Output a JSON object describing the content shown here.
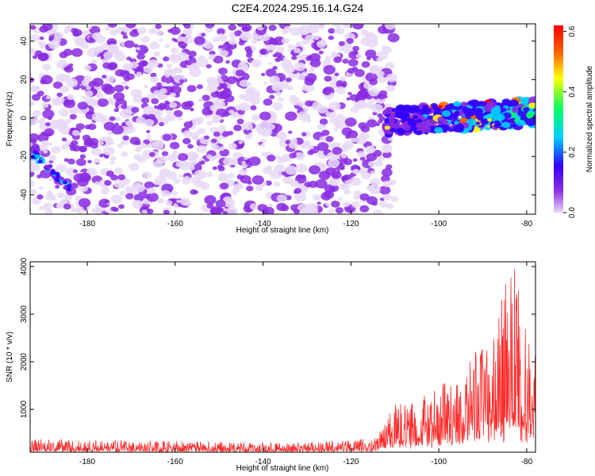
{
  "title": "C2E4.2024.295.16.14.G24",
  "chart_data": [
    {
      "type": "heatmap",
      "xlabel": "Height of straight line (km)",
      "ylabel": "Frequency (Hz)",
      "xlim": [
        -193,
        -78
      ],
      "ylim": [
        -50,
        49
      ],
      "x_ticks": [
        -180,
        -160,
        -140,
        -120,
        -100,
        -80
      ],
      "y_ticks": [
        -40,
        -20,
        0,
        20,
        40
      ],
      "colorbar": {
        "label": "Normalized spectral amplitude",
        "range": [
          0,
          0.62
        ],
        "ticks": [
          0,
          0.2,
          0.4,
          0.6
        ],
        "colors": [
          "#e8d9f7",
          "#8a2be2",
          "#3300ff",
          "#00ccff",
          "#00ff66",
          "#ffff00",
          "#ff6600",
          "#ff0000"
        ]
      },
      "regions": [
        {
          "x": [
            -193,
            -114
          ],
          "y": [
            -50,
            49
          ],
          "level": 0.08,
          "desc": "widespread noise"
        },
        {
          "x": [
            -112,
            -78
          ],
          "y": [
            -8,
            7
          ],
          "level": 0.3,
          "desc": "signal band"
        },
        {
          "x": [
            -193,
            -184
          ],
          "y": [
            -37,
            -17
          ],
          "level": 0.25,
          "desc": "edge streak"
        }
      ]
    },
    {
      "type": "line",
      "xlabel": "Height of straight line (km)",
      "ylabel": "SNR (10 * v/v)",
      "xlim": [
        -193,
        -78
      ],
      "ylim": [
        100,
        4100
      ],
      "x_ticks": [
        -180,
        -160,
        -140,
        -120,
        -100,
        -80
      ],
      "y_ticks": [
        1000,
        2000,
        3000,
        4000
      ],
      "series": [
        {
          "color": "#ff2a2a",
          "envelope": [
            {
              "x": -193,
              "min": 120,
              "max": 420
            },
            {
              "x": -160,
              "min": 110,
              "max": 360
            },
            {
              "x": -130,
              "min": 110,
              "max": 330
            },
            {
              "x": -114,
              "min": 120,
              "max": 430
            },
            {
              "x": -110,
              "min": 150,
              "max": 1100
            },
            {
              "x": -105,
              "min": 170,
              "max": 1150
            },
            {
              "x": -100,
              "min": 180,
              "max": 1550
            },
            {
              "x": -95,
              "min": 170,
              "max": 1500
            },
            {
              "x": -92,
              "min": 200,
              "max": 2200
            },
            {
              "x": -88,
              "min": 220,
              "max": 2300
            },
            {
              "x": -85,
              "min": 250,
              "max": 3600
            },
            {
              "x": -83,
              "min": 300,
              "max": 4050
            },
            {
              "x": -80,
              "min": 250,
              "max": 2600
            },
            {
              "x": -78,
              "min": 250,
              "max": 2100
            }
          ]
        }
      ]
    }
  ]
}
